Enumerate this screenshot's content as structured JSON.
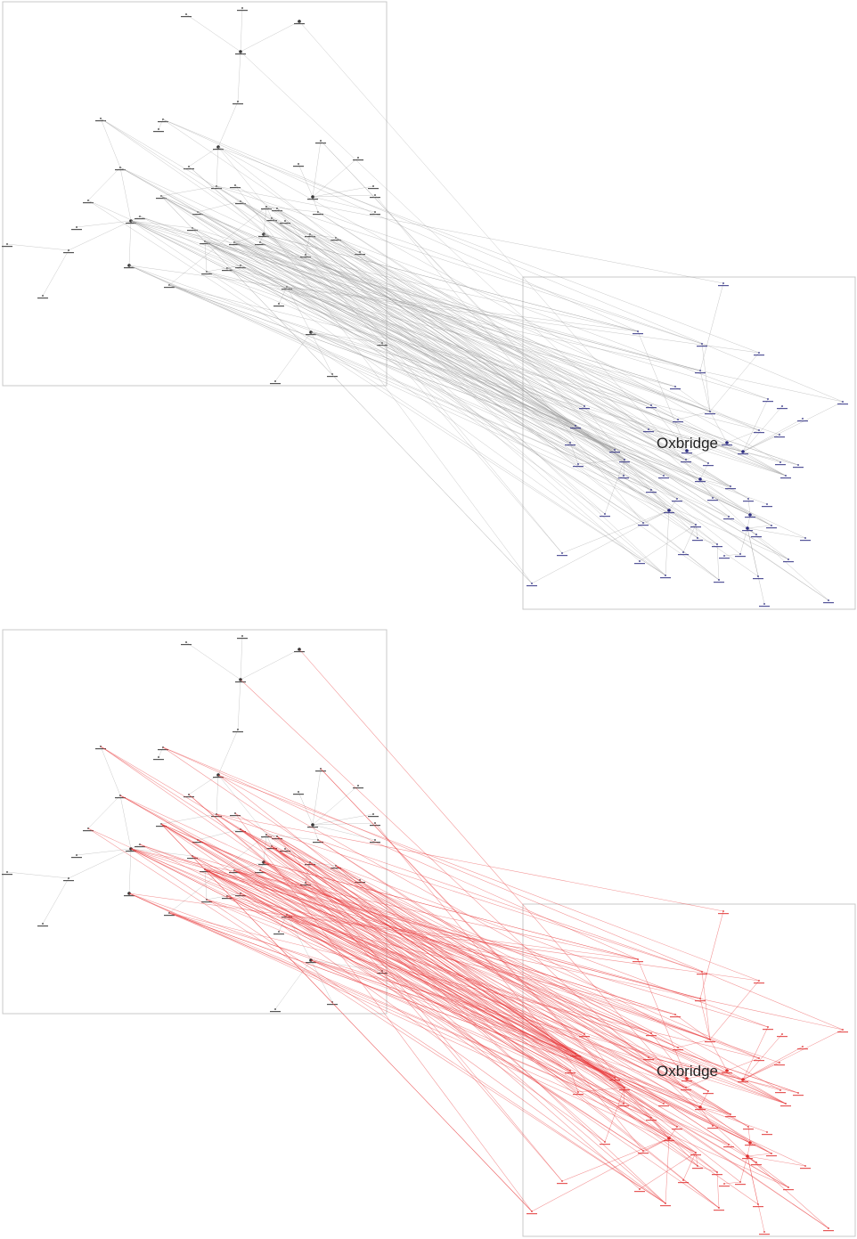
{
  "panels": [
    {
      "id": "top",
      "cluster_label": "Oxbridge",
      "edge_color": "#9a9a9a",
      "remote_node_color": "#2a2a80"
    },
    {
      "id": "bottom",
      "cluster_label": "Oxbridge",
      "edge_color": "#e8383a",
      "remote_node_color": "#e0302f"
    }
  ]
}
